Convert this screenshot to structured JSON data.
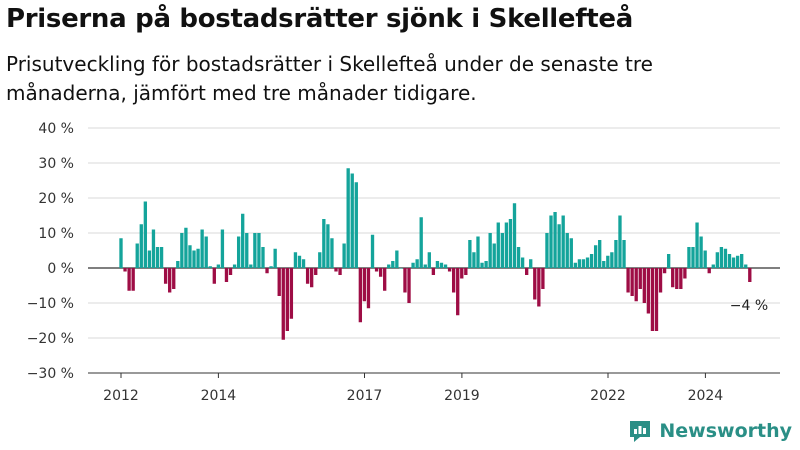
{
  "header": {
    "title": "Priserna på bostadsrätter sjönk i Skellefteå",
    "subtitle": "Prisutveckling för bostadsrätter i Skellefteå under de senaste tre månaderna, jämfört med tre månader tidigare."
  },
  "brand": {
    "name": "Newsworthy"
  },
  "colors": {
    "positive": "#14a49b",
    "negative": "#9e0d45",
    "grid": "#d9d9d9",
    "axis": "#333333"
  },
  "chart_data": {
    "type": "bar",
    "ylim": [
      -30,
      40
    ],
    "y_ticks": [
      -30,
      -20,
      -10,
      0,
      10,
      20,
      30,
      40
    ],
    "y_tick_labels": [
      "−30 %",
      "−20 %",
      "−10 %",
      "0 %",
      "10 %",
      "20 %",
      "30 %",
      "40 %"
    ],
    "x_ticks": [
      "2012",
      "2014",
      "2017",
      "2019",
      "2022",
      "2024"
    ],
    "x_tick_positions": [
      2012.0,
      2014.0,
      2017.0,
      2019.0,
      2022.0,
      2024.0
    ],
    "x_start": 2012.0,
    "step": 0.0833,
    "values": [
      8.5,
      -1,
      -6.5,
      -6.5,
      7,
      12.5,
      19,
      5,
      11,
      6,
      6,
      -4.5,
      -7,
      -6,
      2,
      10,
      11.5,
      6.5,
      5,
      5.5,
      11,
      9,
      0.5,
      -4.5,
      1,
      11,
      -4,
      -2,
      1,
      9,
      15.5,
      10,
      1,
      10,
      10,
      6,
      -1.5,
      0.5,
      5.5,
      -8,
      -20.5,
      -18,
      -14.5,
      4.5,
      3.5,
      2.5,
      -4.5,
      -5.5,
      -2,
      4.5,
      14,
      12.5,
      8.5,
      -1,
      -2,
      7,
      28.5,
      27,
      24.5,
      -15.5,
      -9.5,
      -11.5,
      9.5,
      -1,
      -2.5,
      -6.5,
      1,
      2,
      5,
      0,
      -7,
      -10,
      1.5,
      2.5,
      14.5,
      1,
      4.5,
      -2,
      2,
      1.5,
      1,
      -1,
      -7,
      -13.5,
      -3,
      -2,
      8,
      4.5,
      9,
      1.5,
      2,
      10,
      7,
      13,
      10,
      13,
      14,
      18.5,
      6,
      3,
      -2,
      2.5,
      -9,
      -11,
      -6,
      10,
      15,
      16,
      12.5,
      15,
      10,
      8.5,
      1.5,
      2.5,
      2.5,
      3,
      4,
      6.5,
      8,
      2,
      3.5,
      4.5,
      8,
      15,
      8,
      -7,
      -8,
      -9.5,
      -6,
      -10,
      -13,
      -18,
      -18,
      -7,
      -1.5,
      4,
      -5.5,
      -6,
      -6,
      -3,
      6,
      6,
      13,
      9,
      5,
      -1.5,
      1,
      4.5,
      6,
      5.5,
      4,
      3,
      3.5,
      4,
      1,
      -4
    ],
    "annotations": [
      {
        "label": "−4 %",
        "value": -4
      }
    ]
  }
}
